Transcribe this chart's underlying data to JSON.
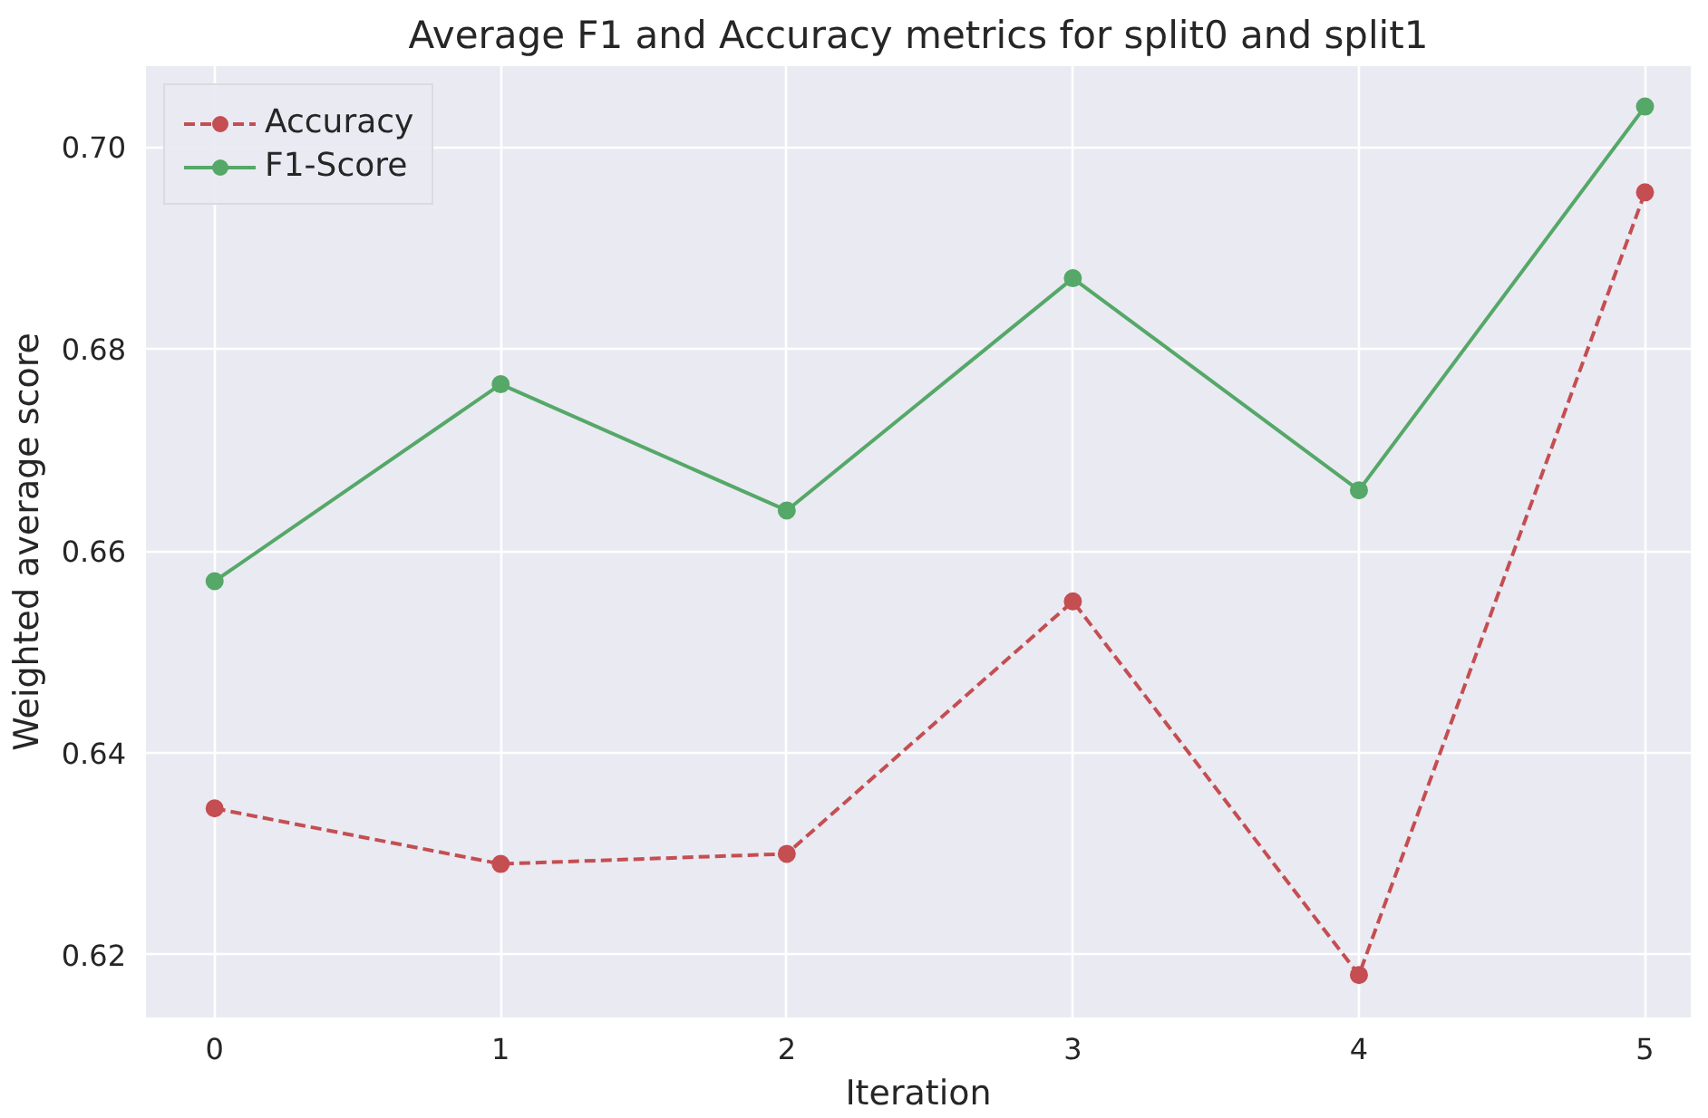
{
  "chart_data": {
    "type": "line",
    "title": "Average F1 and Accuracy metrics for split0 and split1",
    "xlabel": "Iteration",
    "ylabel": "Weighted average score",
    "x": [
      0,
      1,
      2,
      3,
      4,
      5
    ],
    "series": [
      {
        "name": "Accuracy",
        "color": "#c44e52",
        "line_style": "dashed",
        "values": [
          0.6345,
          0.629,
          0.63,
          0.655,
          0.618,
          0.6955
        ]
      },
      {
        "name": "F1-Score",
        "color": "#55a868",
        "line_style": "solid",
        "values": [
          0.657,
          0.6765,
          0.664,
          0.687,
          0.666,
          0.704
        ]
      }
    ],
    "marker": "circle",
    "xlim": [
      -0.24,
      5.16
    ],
    "ylim": [
      0.6138,
      0.708
    ],
    "xticks": [
      0,
      1,
      2,
      3,
      4,
      5
    ],
    "yticks": [
      {
        "value": 0.62,
        "label": "0.62"
      },
      {
        "value": 0.64,
        "label": "0.64"
      },
      {
        "value": 0.66,
        "label": "0.66"
      },
      {
        "value": 0.68,
        "label": "0.68"
      },
      {
        "value": 0.7,
        "label": "0.70"
      }
    ],
    "grid": true,
    "legend": "top left"
  }
}
